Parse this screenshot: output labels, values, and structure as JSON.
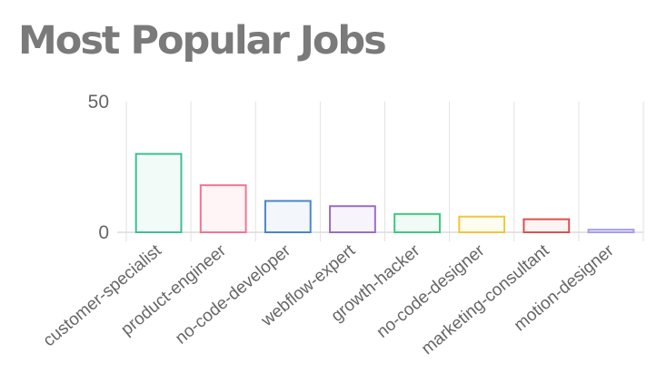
{
  "title": "Most Popular Jobs",
  "chart_data": {
    "type": "bar",
    "categories": [
      "customer-specialist",
      "product-engineer",
      "no-code-developer",
      "webflow-expert",
      "growth-hacker",
      "no-code-designer",
      "marketing-consultant",
      "motion-designer"
    ],
    "values": [
      30,
      18,
      12,
      10,
      7,
      6,
      5,
      1
    ],
    "ylim": [
      0,
      50
    ],
    "yticks": [
      0,
      50
    ],
    "grid": true,
    "legend": "none",
    "colors": {
      "borders": [
        "#3dbf95",
        "#f07590",
        "#4a86c8",
        "#9b6dc6",
        "#3ec97e",
        "#f2c53d",
        "#d9534f",
        "#a79ee8"
      ],
      "fills": [
        "#f2fbf8",
        "#fff4f6",
        "#f3f7fc",
        "#f8f4fb",
        "#f1fbf5",
        "#fffcf0",
        "#fcf3f3",
        "#f6f5fd"
      ]
    }
  }
}
